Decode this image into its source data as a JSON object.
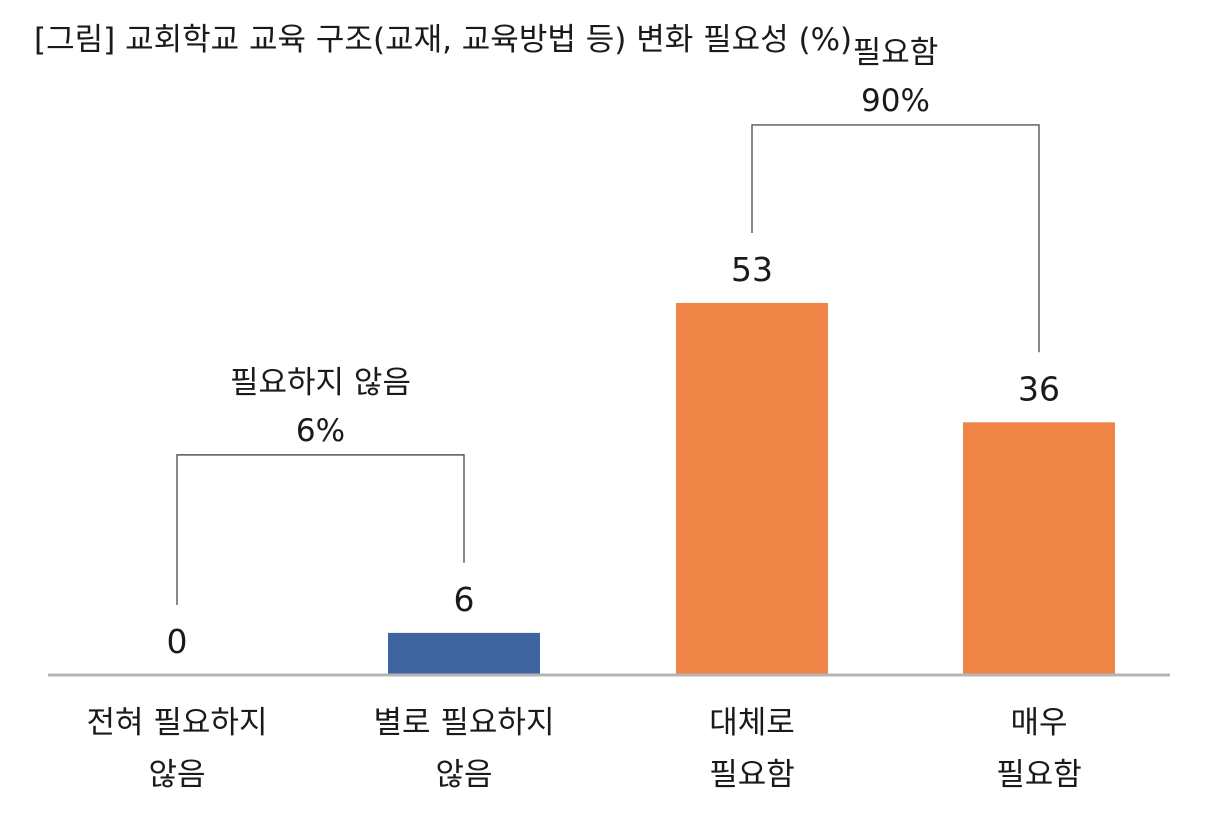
{
  "chart_data": {
    "type": "bar",
    "title": "[그림] 교회학교 교육 구조(교재, 교육방법 등) 변화 필요성 (%)",
    "categories": [
      [
        "전혀 필요하지",
        "않음"
      ],
      [
        "별로 필요하지",
        "않음"
      ],
      [
        "대체로",
        "필요함"
      ],
      [
        "매우",
        "필요함"
      ]
    ],
    "values": [
      0,
      6,
      53,
      36
    ],
    "value_labels": [
      "0",
      "6",
      "53",
      "36"
    ],
    "bar_colors": [
      "#3f64a0",
      "#3f64a0",
      "#ef8547",
      "#ef8547"
    ],
    "ylim": [
      0,
      60
    ],
    "groups": [
      {
        "label": "필요하지 않음",
        "total": "6%",
        "from": 0,
        "to": 1
      },
      {
        "label": "필요함",
        "total": "90%",
        "from": 2,
        "to": 3
      }
    ],
    "xlabel": "",
    "ylabel": ""
  }
}
